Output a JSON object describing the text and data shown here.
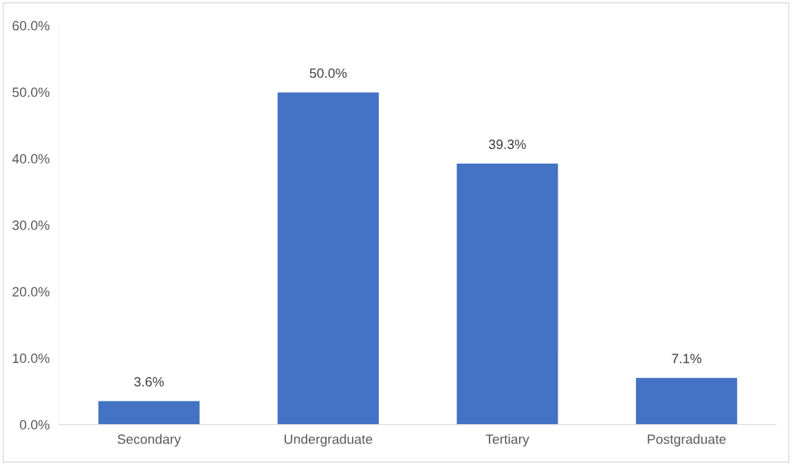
{
  "chart_data": {
    "type": "bar",
    "categories": [
      "Secondary",
      "Undergraduate",
      "Tertiary",
      "Postgraduate"
    ],
    "values": [
      3.6,
      50.0,
      39.3,
      7.1
    ],
    "value_labels": [
      "3.6%",
      "50.0%",
      "39.3%",
      "7.1%"
    ],
    "color": "#4472c4",
    "ylim": [
      0,
      60
    ],
    "yticks": [
      {
        "value": 0,
        "label": "0.0%"
      },
      {
        "value": 10,
        "label": "10.0%"
      },
      {
        "value": 20,
        "label": "20.0%"
      },
      {
        "value": 30,
        "label": "30.0%"
      },
      {
        "value": 40,
        "label": "40.0%"
      },
      {
        "value": 50,
        "label": "50.0%"
      },
      {
        "value": 60,
        "label": "60.0%"
      }
    ],
    "grid": false,
    "legend": false
  }
}
